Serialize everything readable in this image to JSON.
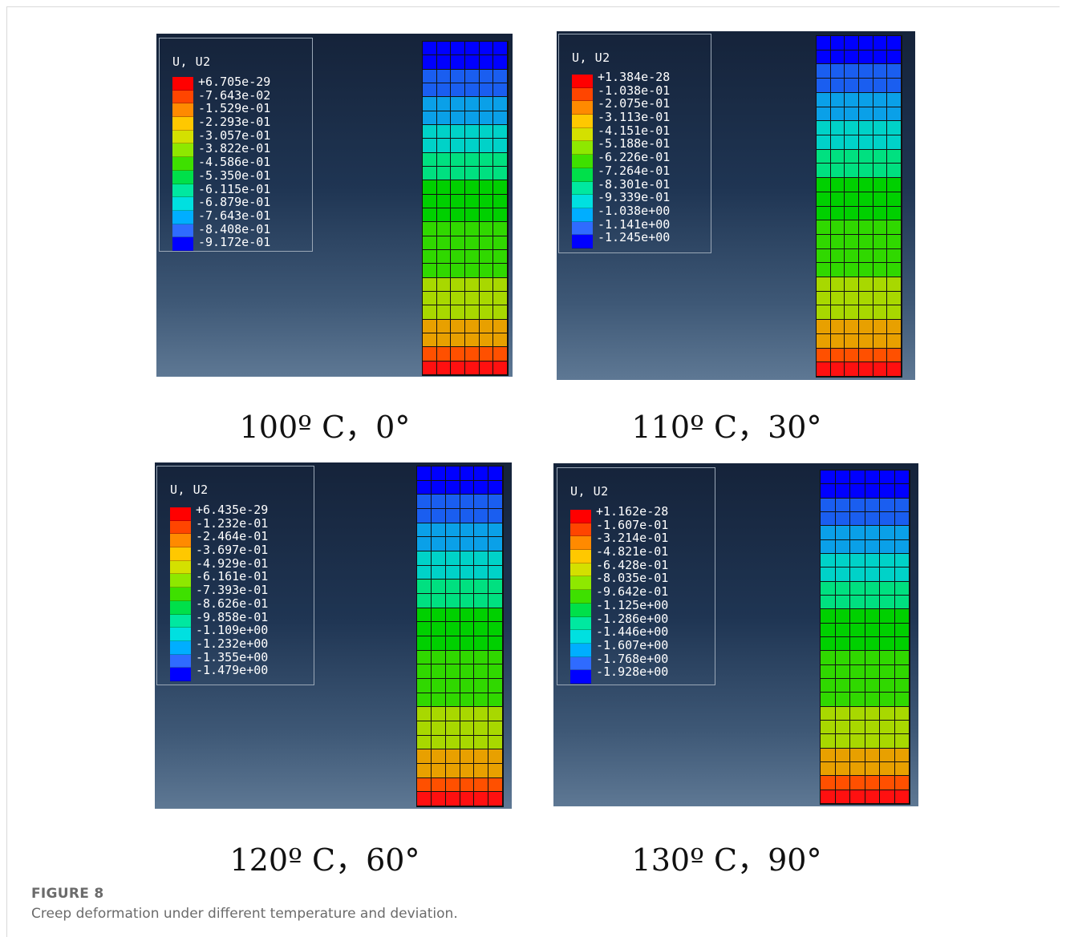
{
  "colors": {
    "contour": [
      "#ff0000",
      "#ff4500",
      "#ff8a00",
      "#ffc800",
      "#d4e000",
      "#8ee800",
      "#3ee000",
      "#00e04a",
      "#00e8a0",
      "#00e0e0",
      "#00aeff",
      "#2f6bff",
      "#0000ff"
    ],
    "mesh_bands": [
      "#0000ff",
      "#1a5ef0",
      "#0aa0e8",
      "#00d2c8",
      "#00e080",
      "#00d000",
      "#30d800",
      "#a8d800",
      "#e8a000",
      "#ff5000",
      "#ff1010"
    ],
    "mesh_band_rows": [
      0,
      0,
      1,
      1,
      2,
      2,
      3,
      3,
      4,
      4,
      5,
      5,
      5,
      6,
      6,
      6,
      6,
      7,
      7,
      7,
      8,
      8,
      9,
      10
    ]
  },
  "panels": [
    {
      "legend_title": "U, U2",
      "legend_values": [
        "+6.705e-29",
        "-7.643e-02",
        "-1.529e-01",
        "-2.293e-01",
        "-3.057e-01",
        "-3.822e-01",
        "-4.586e-01",
        "-5.350e-01",
        "-6.115e-01",
        "-6.879e-01",
        "-7.643e-01",
        "-8.408e-01",
        "-9.172e-01"
      ],
      "caption": "100º C，0°"
    },
    {
      "legend_title": "U, U2",
      "legend_values": [
        "+1.384e-28",
        "-1.038e-01",
        "-2.075e-01",
        "-3.113e-01",
        "-4.151e-01",
        "-5.188e-01",
        "-6.226e-01",
        "-7.264e-01",
        "-8.301e-01",
        "-9.339e-01",
        "-1.038e+00",
        "-1.141e+00",
        "-1.245e+00"
      ],
      "caption": "110º C，30°"
    },
    {
      "legend_title": "U, U2",
      "legend_values": [
        "+6.435e-29",
        "-1.232e-01",
        "-2.464e-01",
        "-3.697e-01",
        "-4.929e-01",
        "-6.161e-01",
        "-7.393e-01",
        "-8.626e-01",
        "-9.858e-01",
        "-1.109e+00",
        "-1.232e+00",
        "-1.355e+00",
        "-1.479e+00"
      ],
      "caption": "120º C，60°"
    },
    {
      "legend_title": "U, U2",
      "legend_values": [
        "+1.162e-28",
        "-1.607e-01",
        "-3.214e-01",
        "-4.821e-01",
        "-6.428e-01",
        "-8.035e-01",
        "-9.642e-01",
        "-1.125e+00",
        "-1.286e+00",
        "-1.446e+00",
        "-1.607e+00",
        "-1.768e+00",
        "-1.928e+00"
      ],
      "caption": "130º C，90°"
    }
  ],
  "figure": {
    "label": "FIGURE 8",
    "caption": "Creep deformation under different temperature and deviation."
  }
}
